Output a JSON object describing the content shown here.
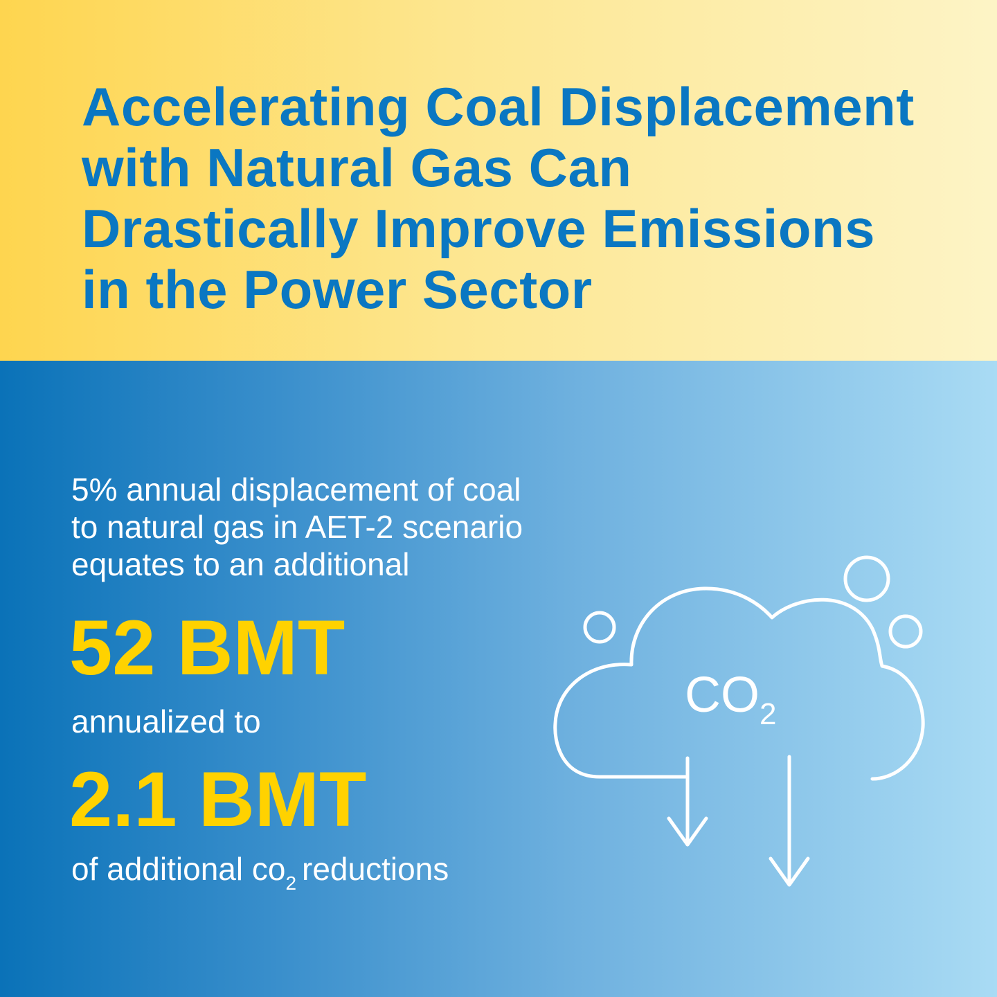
{
  "header": {
    "title_lines": [
      "Accelerating Coal Displacement",
      "with Natural Gas Can",
      "Drastically Improve Emissions",
      "in the Power Sector"
    ]
  },
  "body": {
    "intro_lines": [
      "5% annual displacement of coal",
      "to natural gas in AET-2 scenario",
      "equates to an additional"
    ],
    "value_1": "52 BMT",
    "connector": "annualized to",
    "value_2": "2.1 BMT",
    "footer_prefix": "of additional co",
    "footer_sub": "2",
    "footer_suffix": "reductions"
  },
  "icon": {
    "name": "co2-cloud-icon",
    "label_main": "CO",
    "label_sub": "2"
  },
  "colors": {
    "title": "#0a77c2",
    "highlight": "#ffd200",
    "body_text": "#ffffff",
    "top_gradient_start": "#fed54f",
    "top_gradient_end": "#fdf4c6",
    "bottom_gradient_start": "#0a72b8",
    "bottom_gradient_end": "#a9dbf4"
  }
}
